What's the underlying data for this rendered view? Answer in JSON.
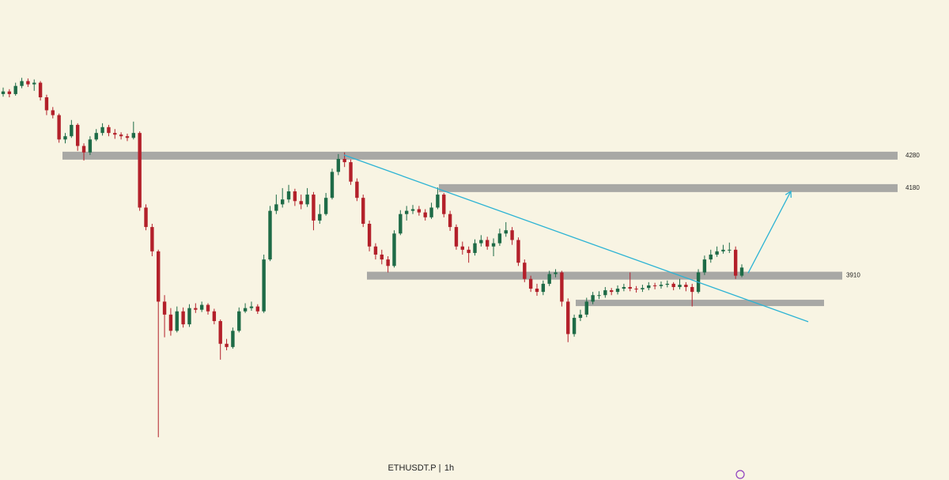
{
  "chart_data": {
    "type": "candlestick",
    "symbol": "ETHUSDT.P",
    "separator": "|",
    "interval": "1h",
    "ylim": [
      3280,
      4760
    ],
    "up_color": "#1e6b47",
    "down_color": "#b3202a",
    "zone_color": "#9a9a9a",
    "line_color": "#2bb3d4",
    "levels": [
      4280,
      4180,
      3910
    ],
    "unlabeled_levels": [
      3826
    ],
    "trendline": [
      4282,
      3768
    ],
    "projection": [
      3918,
      4170
    ],
    "open": [
      4470,
      4478,
      4470,
      4495,
      4510,
      4500,
      4505,
      4460,
      4420,
      4405,
      4330,
      4340,
      4375,
      4310,
      4290,
      4330,
      4350,
      4368,
      4350,
      4345,
      4340,
      4335,
      4350,
      4120,
      4060,
      3985,
      3830,
      3790,
      3740,
      3800,
      3760,
      3810,
      3805,
      3820,
      3800,
      3770,
      3700,
      3690,
      3740,
      3800,
      3810,
      3815,
      3800,
      3960,
      4110,
      4130,
      4145,
      4170,
      4140,
      4130,
      4160,
      4080,
      4100,
      4150,
      4230,
      4270,
      4260,
      4200,
      4150,
      4070,
      4000,
      3975,
      3960,
      3940,
      4040,
      4100,
      4110,
      4115,
      4105,
      4090,
      4120,
      4160,
      4100,
      4060,
      4000,
      3990,
      3980,
      4010,
      4020,
      4000,
      4010,
      4040,
      4050,
      4020,
      3950,
      3900,
      3870,
      3860,
      3885,
      3915,
      3920,
      3830,
      3730,
      3780,
      3790,
      3830,
      3850,
      3850,
      3865,
      3860,
      3870,
      3875,
      3870,
      3868,
      3872,
      3880,
      3878,
      3882,
      3885,
      3875,
      3882,
      3875,
      3860,
      3920,
      3960,
      3975,
      3985,
      3990,
      3990,
      3910
    ],
    "high": [
      4490,
      4485,
      4505,
      4520,
      4518,
      4515,
      4510,
      4468,
      4430,
      4410,
      4350,
      4390,
      4380,
      4318,
      4340,
      4362,
      4380,
      4375,
      4362,
      4352,
      4348,
      4385,
      4355,
      4130,
      4070,
      3990,
      3850,
      3810,
      3815,
      3812,
      3822,
      3825,
      3830,
      3825,
      3808,
      3775,
      3715,
      3750,
      3812,
      3825,
      3830,
      3822,
      3975,
      4125,
      4160,
      4180,
      4190,
      4178,
      4160,
      4180,
      4168,
      4130,
      4165,
      4240,
      4285,
      4290,
      4268,
      4210,
      4160,
      4080,
      4010,
      3990,
      3970,
      4050,
      4112,
      4125,
      4128,
      4125,
      4115,
      4135,
      4182,
      4165,
      4110,
      4068,
      4015,
      4000,
      4022,
      4035,
      4030,
      4025,
      4055,
      4075,
      4060,
      4028,
      3960,
      3910,
      3885,
      3895,
      3925,
      3930,
      3925,
      3840,
      3790,
      3805,
      3842,
      3860,
      3862,
      3875,
      3872,
      3880,
      3885,
      3920,
      3878,
      3882,
      3890,
      3888,
      3892,
      3895,
      3890,
      3900,
      3890,
      3885,
      3930,
      3972,
      3990,
      4000,
      4005,
      4012,
      4000,
      3945
    ],
    "low": [
      4462,
      4460,
      4465,
      4488,
      4492,
      4480,
      4450,
      4405,
      4395,
      4320,
      4318,
      4335,
      4295,
      4265,
      4282,
      4325,
      4342,
      4340,
      4332,
      4330,
      4325,
      4330,
      4110,
      4050,
      3970,
      3412,
      3720,
      3725,
      3735,
      3750,
      3752,
      3795,
      3798,
      3790,
      3760,
      3651,
      3680,
      3685,
      3735,
      3795,
      3802,
      3792,
      3795,
      3955,
      4100,
      4120,
      4135,
      4125,
      4115,
      4122,
      4050,
      4070,
      4095,
      4145,
      4220,
      4245,
      4190,
      4140,
      4060,
      3985,
      3960,
      3945,
      3920,
      3935,
      4035,
      4080,
      4100,
      4095,
      4080,
      4085,
      4115,
      4090,
      4048,
      3990,
      3975,
      3950,
      3972,
      4000,
      3990,
      3970,
      4002,
      4030,
      4005,
      3940,
      3890,
      3860,
      3848,
      3850,
      3878,
      3905,
      3815,
      3705,
      3722,
      3770,
      3782,
      3822,
      3838,
      3842,
      3850,
      3852,
      3862,
      3862,
      3858,
      3860,
      3865,
      3868,
      3870,
      3874,
      3865,
      3868,
      3862,
      3815,
      3855,
      3912,
      3950,
      3968,
      3978,
      3980,
      3900,
      3905
    ],
    "close": [
      4478,
      4470,
      4495,
      4510,
      4500,
      4505,
      4460,
      4420,
      4405,
      4330,
      4340,
      4375,
      4310,
      4290,
      4330,
      4350,
      4368,
      4350,
      4345,
      4340,
      4335,
      4350,
      4120,
      4060,
      3985,
      3830,
      3790,
      3740,
      3800,
      3760,
      3810,
      3805,
      3820,
      3800,
      3770,
      3700,
      3690,
      3740,
      3800,
      3810,
      3815,
      3800,
      3960,
      4110,
      4130,
      4145,
      4170,
      4140,
      4130,
      4160,
      4080,
      4100,
      4150,
      4230,
      4270,
      4260,
      4200,
      4150,
      4070,
      4000,
      3975,
      3960,
      3940,
      4040,
      4100,
      4110,
      4115,
      4105,
      4090,
      4120,
      4160,
      4100,
      4060,
      4000,
      3990,
      3980,
      4010,
      4020,
      4000,
      4010,
      4040,
      4050,
      4020,
      3950,
      3900,
      3870,
      3860,
      3885,
      3915,
      3920,
      3830,
      3730,
      3780,
      3790,
      3830,
      3850,
      3850,
      3865,
      3860,
      3870,
      3875,
      3870,
      3868,
      3872,
      3880,
      3878,
      3882,
      3885,
      3875,
      3882,
      3875,
      3860,
      3920,
      3960,
      3975,
      3985,
      3990,
      3990,
      3910,
      3935
    ]
  }
}
